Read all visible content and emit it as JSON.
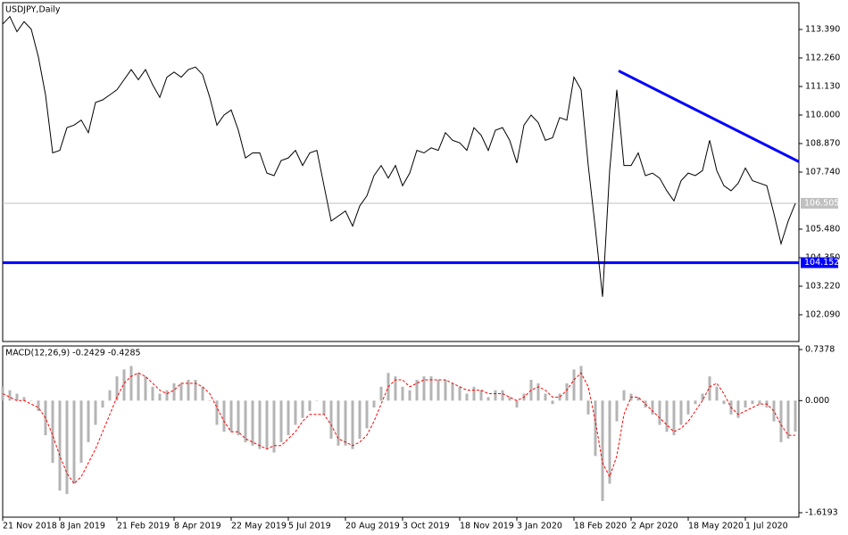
{
  "chart_data": [
    {
      "type": "line",
      "title": "USDJPY,Daily",
      "color": "#000000",
      "categories": [
        "21 Nov 2018",
        null,
        null,
        null,
        null,
        null,
        null,
        null,
        "8 Jan 2019",
        null,
        null,
        null,
        null,
        null,
        null,
        null,
        "21 Feb 2019",
        null,
        null,
        null,
        null,
        null,
        null,
        null,
        "8 Apr 2019",
        null,
        null,
        null,
        null,
        null,
        null,
        null,
        "22 May 2019",
        null,
        null,
        null,
        null,
        null,
        null,
        null,
        "5 Jul 2019",
        null,
        null,
        null,
        null,
        null,
        null,
        null,
        "20 Aug 2019",
        null,
        null,
        null,
        null,
        null,
        null,
        null,
        "3 Oct 2019",
        null,
        null,
        null,
        null,
        null,
        null,
        null,
        "18 Nov 2019",
        null,
        null,
        null,
        null,
        null,
        null,
        null,
        "3 Jan 2020",
        null,
        null,
        null,
        null,
        null,
        null,
        null,
        "18 Feb 2020",
        null,
        null,
        null,
        null,
        null,
        null,
        null,
        "2 Apr 2020",
        null,
        null,
        null,
        null,
        null,
        null,
        null,
        "18 May 2020",
        null,
        null,
        null,
        null,
        null,
        null,
        null,
        "1 Jul 2020",
        null,
        null,
        null,
        null,
        null,
        null,
        null
      ],
      "values": [
        113.6,
        113.9,
        113.3,
        113.7,
        113.4,
        112.3,
        110.8,
        108.5,
        108.6,
        109.5,
        109.6,
        109.8,
        109.3,
        110.5,
        110.6,
        110.8,
        111.0,
        111.4,
        111.8,
        111.4,
        111.8,
        111.2,
        110.7,
        111.5,
        111.7,
        111.5,
        111.8,
        111.9,
        111.6,
        110.7,
        109.6,
        110.0,
        110.2,
        109.4,
        108.3,
        108.5,
        108.5,
        107.7,
        107.6,
        108.2,
        108.3,
        108.6,
        108.0,
        108.5,
        108.6,
        107.2,
        105.8,
        106.0,
        106.2,
        105.6,
        106.4,
        106.8,
        107.6,
        108.0,
        107.5,
        108.0,
        107.2,
        107.7,
        108.6,
        108.5,
        108.7,
        108.6,
        109.3,
        109.0,
        108.9,
        108.6,
        109.5,
        109.2,
        108.6,
        109.4,
        109.5,
        109.0,
        108.1,
        109.6,
        110.0,
        109.7,
        109.0,
        109.1,
        109.9,
        109.8,
        111.5,
        111.0,
        108.0,
        105.5,
        102.8,
        107.8,
        111.0,
        108.0,
        108.0,
        108.5,
        107.6,
        107.7,
        107.5,
        107.0,
        106.6,
        107.4,
        107.7,
        107.6,
        107.8,
        109.0,
        107.8,
        107.2,
        107.0,
        107.3,
        107.9,
        107.4,
        107.3,
        107.2,
        106.1,
        104.9,
        105.8,
        106.5
      ],
      "xlim": [
        0,
        111.5
      ],
      "ylim": [
        101.03,
        114.45
      ],
      "yticks": [
        {
          "value": 113.39,
          "label": "113.390"
        },
        {
          "value": 112.26,
          "label": "112.260"
        },
        {
          "value": 111.13,
          "label": "111.130"
        },
        {
          "value": 110.0,
          "label": "110.000"
        },
        {
          "value": 108.87,
          "label": "108.870"
        },
        {
          "value": 107.74,
          "label": "107.740"
        },
        {
          "value": 105.48,
          "label": "105.480"
        },
        {
          "value": 104.35,
          "label": "104.350"
        },
        {
          "value": 103.22,
          "label": "103.220"
        },
        {
          "value": 102.09,
          "label": "102.090"
        }
      ],
      "price_lines": [
        {
          "value": 106.505,
          "label": "106.505",
          "color": "#c0c0c0",
          "width": 1
        },
        {
          "value": 104.152,
          "label": "104.152",
          "color": "#0000ff",
          "width": 3
        }
      ],
      "trendlines": [
        {
          "x": [
            86.25,
            111.5
          ],
          "y": [
            111.75,
            108.15
          ],
          "color": "#0000ff"
        }
      ]
    },
    {
      "type": "macd",
      "title": "MACD(12,26,9) -0.2429 -0.4285",
      "series": [
        {
          "style": "bar",
          "color": "#b4b4b4",
          "values": [
            0.2,
            0.15,
            0.1,
            0.05,
            0,
            -0.15,
            -0.5,
            -0.9,
            -1.3,
            -1.35,
            -1.2,
            -0.9,
            -0.6,
            -0.35,
            -0.1,
            0.15,
            0.35,
            0.45,
            0.5,
            0.4,
            0.35,
            0.2,
            0.1,
            0.15,
            0.25,
            0.25,
            0.3,
            0.3,
            0.2,
            0,
            -0.35,
            -0.45,
            -0.45,
            -0.5,
            -0.6,
            -0.65,
            -0.7,
            -0.7,
            -0.75,
            -0.6,
            -0.5,
            -0.35,
            -0.25,
            -0.15,
            0.0,
            -0.2,
            -0.55,
            -0.65,
            -0.65,
            -0.7,
            -0.55,
            -0.4,
            -0.1,
            0.2,
            0.4,
            0.35,
            0.2,
            0.15,
            0.3,
            0.35,
            0.35,
            0.3,
            0.3,
            0.25,
            0.2,
            0.1,
            0.2,
            0.15,
            0.05,
            0.15,
            0.15,
            0.05,
            -0.1,
            0.1,
            0.3,
            0.25,
            0.1,
            -0.05,
            0.1,
            0.25,
            0.45,
            0.5,
            -0.2,
            -0.8,
            -1.45,
            -1.2,
            -0.3,
            0.15,
            0.1,
            0.05,
            -0.1,
            -0.2,
            -0.35,
            -0.45,
            -0.5,
            -0.35,
            -0.2,
            -0.05,
            0.1,
            0.35,
            0.2,
            -0.05,
            -0.2,
            -0.25,
            -0.1,
            -0.05,
            -0.05,
            -0.1,
            -0.3,
            -0.6,
            -0.55,
            -0.45
          ]
        },
        {
          "style": "dashed-line",
          "color": "#ff0000",
          "values": [
            0.1,
            0.05,
            0.0,
            0.0,
            -0.05,
            -0.1,
            -0.25,
            -0.5,
            -0.8,
            -1.05,
            -1.2,
            -1.1,
            -0.9,
            -0.7,
            -0.45,
            -0.2,
            0.05,
            0.25,
            0.35,
            0.4,
            0.35,
            0.25,
            0.15,
            0.1,
            0.15,
            0.25,
            0.25,
            0.25,
            0.2,
            0.1,
            -0.1,
            -0.3,
            -0.45,
            -0.45,
            -0.55,
            -0.6,
            -0.65,
            -0.7,
            -0.65,
            -0.65,
            -0.55,
            -0.45,
            -0.3,
            -0.2,
            -0.2,
            -0.2,
            -0.35,
            -0.55,
            -0.6,
            -0.65,
            -0.6,
            -0.5,
            -0.3,
            -0.05,
            0.2,
            0.3,
            0.3,
            0.2,
            0.25,
            0.3,
            0.3,
            0.3,
            0.3,
            0.25,
            0.2,
            0.15,
            0.15,
            0.15,
            0.1,
            0.1,
            0.1,
            0.05,
            0.0,
            0.05,
            0.15,
            0.2,
            0.15,
            0.05,
            0.05,
            0.15,
            0.3,
            0.4,
            0.2,
            -0.3,
            -0.9,
            -1.1,
            -0.8,
            -0.2,
            0.05,
            0.05,
            -0.05,
            -0.15,
            -0.25,
            -0.35,
            -0.45,
            -0.4,
            -0.3,
            -0.15,
            0.0,
            0.2,
            0.25,
            0.1,
            -0.1,
            -0.2,
            -0.15,
            -0.1,
            -0.05,
            -0.05,
            -0.15,
            -0.35,
            -0.5,
            -0.5
          ]
        }
      ],
      "ylim": [
        -1.6193,
        0.7378
      ],
      "yticks": [
        0.7378,
        {
          "value": 0,
          "label": "0.000"
        },
        -1.6193
      ]
    }
  ]
}
